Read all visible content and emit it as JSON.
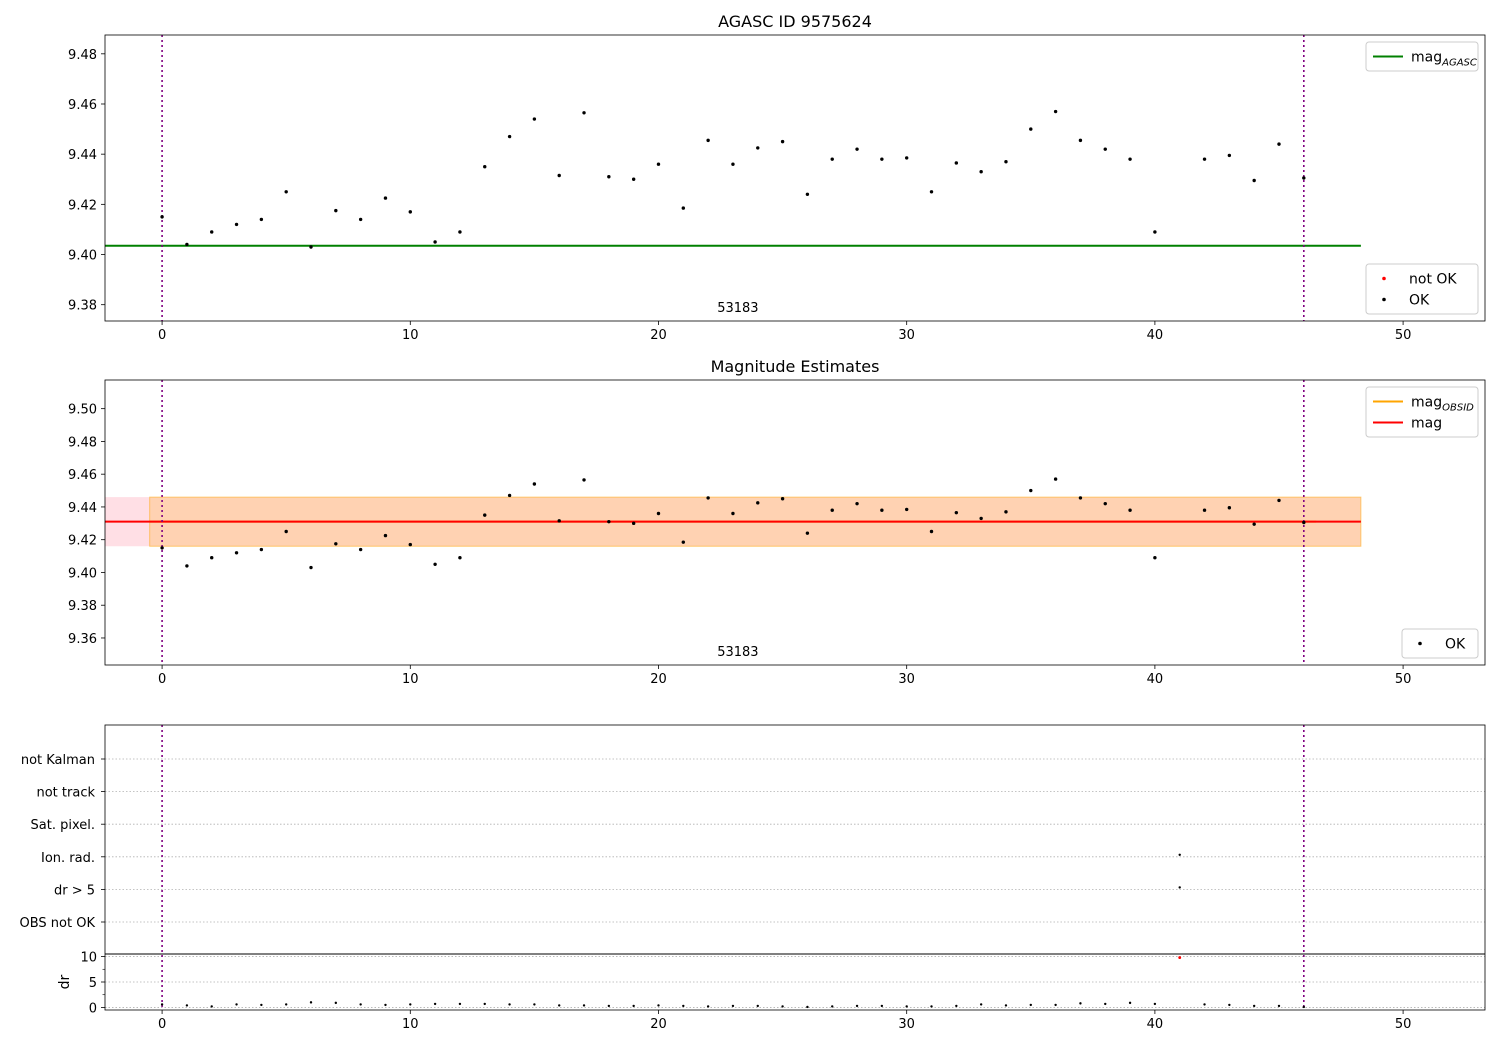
{
  "chart_data": [
    {
      "type": "scatter",
      "title": "AGASC ID 9575624",
      "annotation": "53183",
      "xlim": [
        -2.3,
        53.3
      ],
      "ylim": [
        9.3735,
        9.4875
      ],
      "xticks": [
        0,
        10,
        20,
        30,
        40,
        50
      ],
      "yticks": [
        9.38,
        9.4,
        9.42,
        9.44,
        9.46,
        9.48
      ],
      "vlines": [
        0,
        46
      ],
      "grid": false,
      "legends": [
        {
          "placement": "top-right",
          "entries": [
            {
              "label": "mag",
              "sub": "AGASC",
              "kind": "line",
              "color": "#008000"
            }
          ]
        },
        {
          "placement": "bottom-right",
          "entries": [
            {
              "label": "not OK",
              "kind": "point",
              "color": "#ff0000"
            },
            {
              "label": "OK",
              "kind": "point",
              "color": "#000000"
            }
          ]
        }
      ],
      "reference_line": {
        "y": 9.4035,
        "x": [
          -2.3,
          48.3
        ],
        "color": "#008000"
      },
      "series": [
        {
          "name": "OK",
          "color": "#000000",
          "x": [
            0,
            1,
            2,
            3,
            4,
            5,
            6,
            7,
            8,
            9,
            10,
            11,
            12,
            13,
            14,
            15,
            16,
            17,
            18,
            19,
            20,
            21,
            22,
            23,
            24,
            25,
            26,
            27,
            28,
            29,
            30,
            31,
            32,
            33,
            34,
            35,
            36,
            37,
            38,
            39,
            40,
            42,
            43,
            44,
            45,
            46
          ],
          "y": [
            9.415,
            9.404,
            9.409,
            9.412,
            9.414,
            9.425,
            9.403,
            9.4175,
            9.414,
            9.4225,
            9.417,
            9.405,
            9.409,
            9.435,
            9.447,
            9.454,
            9.4315,
            9.4565,
            9.431,
            9.43,
            9.436,
            9.4185,
            9.4455,
            9.436,
            9.4425,
            9.445,
            9.424,
            9.438,
            9.442,
            9.438,
            9.4385,
            9.425,
            9.4365,
            9.433,
            9.437,
            9.45,
            9.457,
            9.4455,
            9.442,
            9.438,
            9.409,
            9.438,
            9.4395,
            9.4295,
            9.444,
            9.4305
          ]
        }
      ]
    },
    {
      "type": "scatter",
      "title": "Magnitude Estimates",
      "annotation": "53183",
      "xlim": [
        -2.3,
        53.3
      ],
      "ylim": [
        9.3435,
        9.5175
      ],
      "xticks": [
        0,
        10,
        20,
        30,
        40,
        50
      ],
      "yticks": [
        9.36,
        9.38,
        9.4,
        9.42,
        9.44,
        9.46,
        9.48,
        9.5
      ],
      "vlines": [
        0,
        46
      ],
      "grid": false,
      "legends": [
        {
          "placement": "top-right",
          "entries": [
            {
              "label": "mag",
              "sub": "OBSID",
              "kind": "line",
              "color": "#ffa500"
            },
            {
              "label": "mag",
              "kind": "line",
              "color": "#ff0000"
            }
          ]
        },
        {
          "placement": "bottom-right",
          "entries": [
            {
              "label": "OK",
              "kind": "point",
              "color": "#000000"
            }
          ]
        }
      ],
      "band": {
        "y_low": 9.416,
        "y_high": 9.446,
        "x": [
          -2.3,
          48.3
        ],
        "color": "#ffc0cb"
      },
      "obsid_band": {
        "y_low": 9.416,
        "y_high": 9.446,
        "x": [
          -0.5,
          48.3
        ],
        "color": "#ffa500"
      },
      "mean_line": {
        "y": 9.431,
        "x": [
          -2.3,
          48.3
        ],
        "color": "#ff0000"
      },
      "obsid_line": {
        "y": 9.431,
        "x": [
          -0.5,
          46.5
        ],
        "color": "#ffa500"
      },
      "series": [
        {
          "name": "OK",
          "color": "#000000",
          "x": [
            0,
            1,
            2,
            3,
            4,
            5,
            6,
            7,
            8,
            9,
            10,
            11,
            12,
            13,
            14,
            15,
            16,
            17,
            18,
            19,
            20,
            21,
            22,
            23,
            24,
            25,
            26,
            27,
            28,
            29,
            30,
            31,
            32,
            33,
            34,
            35,
            36,
            37,
            38,
            39,
            40,
            42,
            43,
            44,
            45,
            46
          ],
          "y": [
            9.415,
            9.404,
            9.409,
            9.412,
            9.414,
            9.425,
            9.403,
            9.4175,
            9.414,
            9.4225,
            9.417,
            9.405,
            9.409,
            9.435,
            9.447,
            9.454,
            9.4315,
            9.4565,
            9.431,
            9.43,
            9.436,
            9.4185,
            9.4455,
            9.436,
            9.4425,
            9.445,
            9.424,
            9.438,
            9.442,
            9.438,
            9.4385,
            9.425,
            9.4365,
            9.433,
            9.437,
            9.45,
            9.457,
            9.4455,
            9.442,
            9.438,
            9.409,
            9.438,
            9.4395,
            9.4295,
            9.444,
            9.4305
          ]
        }
      ]
    },
    {
      "type": "scatter",
      "title": "",
      "xlim": [
        -2.3,
        53.3
      ],
      "xticks": [
        0,
        10,
        20,
        30,
        40,
        50
      ],
      "vlines": [
        0,
        46
      ],
      "grid": true,
      "flag_categories": [
        "not Kalman",
        "not track",
        "Sat. pixel.",
        "Ion. rad.",
        "dr > 5",
        "OBS not OK"
      ],
      "flag_points": [
        {
          "x": 41,
          "category": "Ion. rad."
        },
        {
          "x": 41,
          "category": "dr > 5"
        }
      ],
      "dr": {
        "ylabel": "dr",
        "ylim": [
          -0.5,
          10.5
        ],
        "yticks": [
          0,
          5,
          10
        ],
        "minor_yticks": [
          2.5,
          7.5
        ],
        "x": [
          0,
          1,
          2,
          3,
          4,
          5,
          6,
          7,
          8,
          9,
          10,
          11,
          12,
          13,
          14,
          15,
          16,
          17,
          18,
          19,
          20,
          21,
          22,
          23,
          24,
          25,
          26,
          27,
          28,
          29,
          30,
          31,
          32,
          33,
          34,
          35,
          36,
          37,
          38,
          39,
          40,
          42,
          43,
          44,
          45,
          46
        ],
        "y": [
          0.6,
          0.4,
          0.2,
          0.6,
          0.5,
          0.6,
          1.0,
          0.9,
          0.6,
          0.5,
          0.6,
          0.7,
          0.7,
          0.7,
          0.6,
          0.6,
          0.4,
          0.4,
          0.3,
          0.3,
          0.4,
          0.3,
          0.2,
          0.3,
          0.3,
          0.2,
          0.1,
          0.2,
          0.3,
          0.3,
          0.2,
          0.2,
          0.3,
          0.6,
          0.4,
          0.5,
          0.5,
          0.8,
          0.7,
          0.9,
          0.7,
          0.6,
          0.5,
          0.3,
          0.3,
          0.1
        ],
        "outlier": {
          "x": 41,
          "y": 9.8,
          "color": "#ff0000"
        }
      }
    }
  ]
}
